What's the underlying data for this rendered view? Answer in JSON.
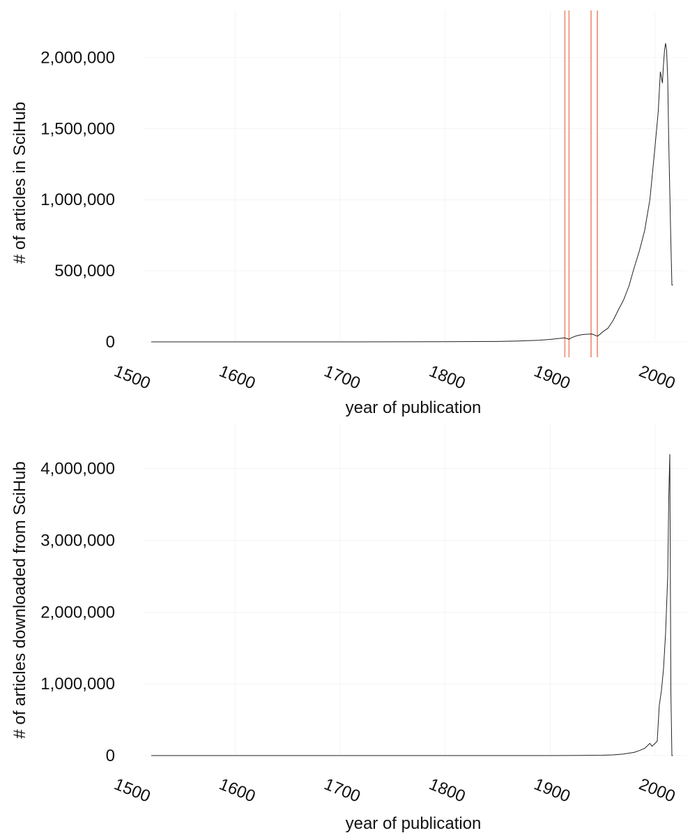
{
  "chart_data": [
    {
      "type": "line",
      "title": "",
      "xlabel": "year of publication",
      "ylabel": "# of articles in SciHub",
      "xlim": [
        1520,
        2020
      ],
      "ylim": [
        0,
        2100000
      ],
      "x_ticks": [
        1500,
        1600,
        1700,
        1800,
        1900,
        2000
      ],
      "x_tick_labels": [
        "1500",
        "1600",
        "1700",
        "1800",
        "1900",
        "2000"
      ],
      "y_ticks": [
        0,
        500000,
        1000000,
        1500000,
        2000000
      ],
      "y_tick_labels": [
        "0",
        "500,000",
        "1,000,000",
        "1,500,000",
        "2,000,000"
      ],
      "grid": true,
      "legend": "none",
      "series_color": "#222222",
      "series": [
        {
          "x": [
            1520,
            1700,
            1800,
            1850,
            1870,
            1890,
            1900,
            1910,
            1914,
            1918,
            1920,
            1925,
            1930,
            1935,
            1940,
            1945,
            1947,
            1950,
            1955,
            1960,
            1965,
            1970,
            1975,
            1980,
            1985,
            1990,
            1995,
            1997,
            2000,
            2003,
            2005,
            2007,
            2008,
            2009,
            2010,
            2011,
            2012,
            2013,
            2015,
            2016,
            2017
          ],
          "y": [
            0,
            0,
            1000,
            3000,
            6000,
            12000,
            17000,
            25000,
            28000,
            18000,
            28000,
            42000,
            50000,
            54000,
            55000,
            40000,
            50000,
            70000,
            95000,
            150000,
            225000,
            295000,
            390000,
            520000,
            640000,
            780000,
            1000000,
            1150000,
            1380000,
            1620000,
            1900000,
            1820000,
            1950000,
            2050000,
            2100000,
            2050000,
            1850000,
            1400000,
            700000,
            400000,
            400000
          ]
        }
      ],
      "vertical_lines": [
        1914,
        1918,
        1939,
        1945
      ],
      "vertical_line_color": "#f0a088"
    },
    {
      "type": "line",
      "title": "",
      "xlabel": "year of publication",
      "ylabel": "# of articles downloaded from SciHub",
      "xlim": [
        1520,
        2020
      ],
      "ylim": [
        0,
        4200000
      ],
      "x_ticks": [
        1500,
        1600,
        1700,
        1800,
        1900,
        2000
      ],
      "x_tick_labels": [
        "1500",
        "1600",
        "1700",
        "1800",
        "1900",
        "2000"
      ],
      "y_ticks": [
        0,
        1000000,
        2000000,
        3000000,
        4000000
      ],
      "y_tick_labels": [
        "0",
        "1,000,000",
        "2,000,000",
        "3,000,000",
        "4,000,000"
      ],
      "grid": true,
      "legend": "none",
      "series_color": "#222222",
      "series": [
        {
          "x": [
            1520,
            1900,
            1930,
            1950,
            1960,
            1970,
            1980,
            1985,
            1990,
            1995,
            1997,
            2000,
            2002,
            2003,
            2004,
            2006,
            2008,
            2010,
            2012,
            2013,
            2014,
            2015,
            2016,
            2017
          ],
          "y": [
            0,
            0,
            2000,
            5000,
            10000,
            22000,
            45000,
            70000,
            100000,
            170000,
            130000,
            170000,
            200000,
            450000,
            700000,
            900000,
            1200000,
            1700000,
            2500000,
            3600000,
            4200000,
            900000,
            0,
            0
          ]
        }
      ]
    }
  ]
}
